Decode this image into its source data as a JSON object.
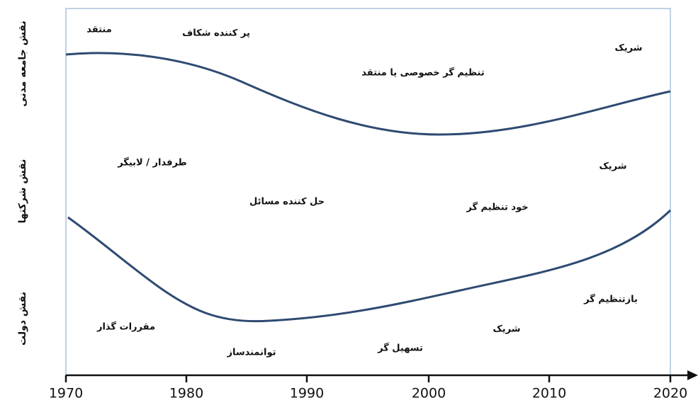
{
  "axis": {
    "ticks": [
      "1970",
      "1980",
      "1990",
      "2000",
      "2010",
      "2020"
    ]
  },
  "row_labels": [
    "نقش جامعه مدنی",
    "نقش شرکتها",
    "نقش دولت"
  ],
  "regions": [
    "منتقد",
    "پر کننده شکاف",
    "شریک",
    "تنظیم گر خصوصی یا منتقد",
    "طرفدار / لابیگر",
    "شریک",
    "حل کننده مسائل",
    "خود تنظیم گر",
    "بازتنظیم گر",
    "مقررات گذار",
    "شریک",
    "توانمندساز",
    "تسهیل گر"
  ]
}
